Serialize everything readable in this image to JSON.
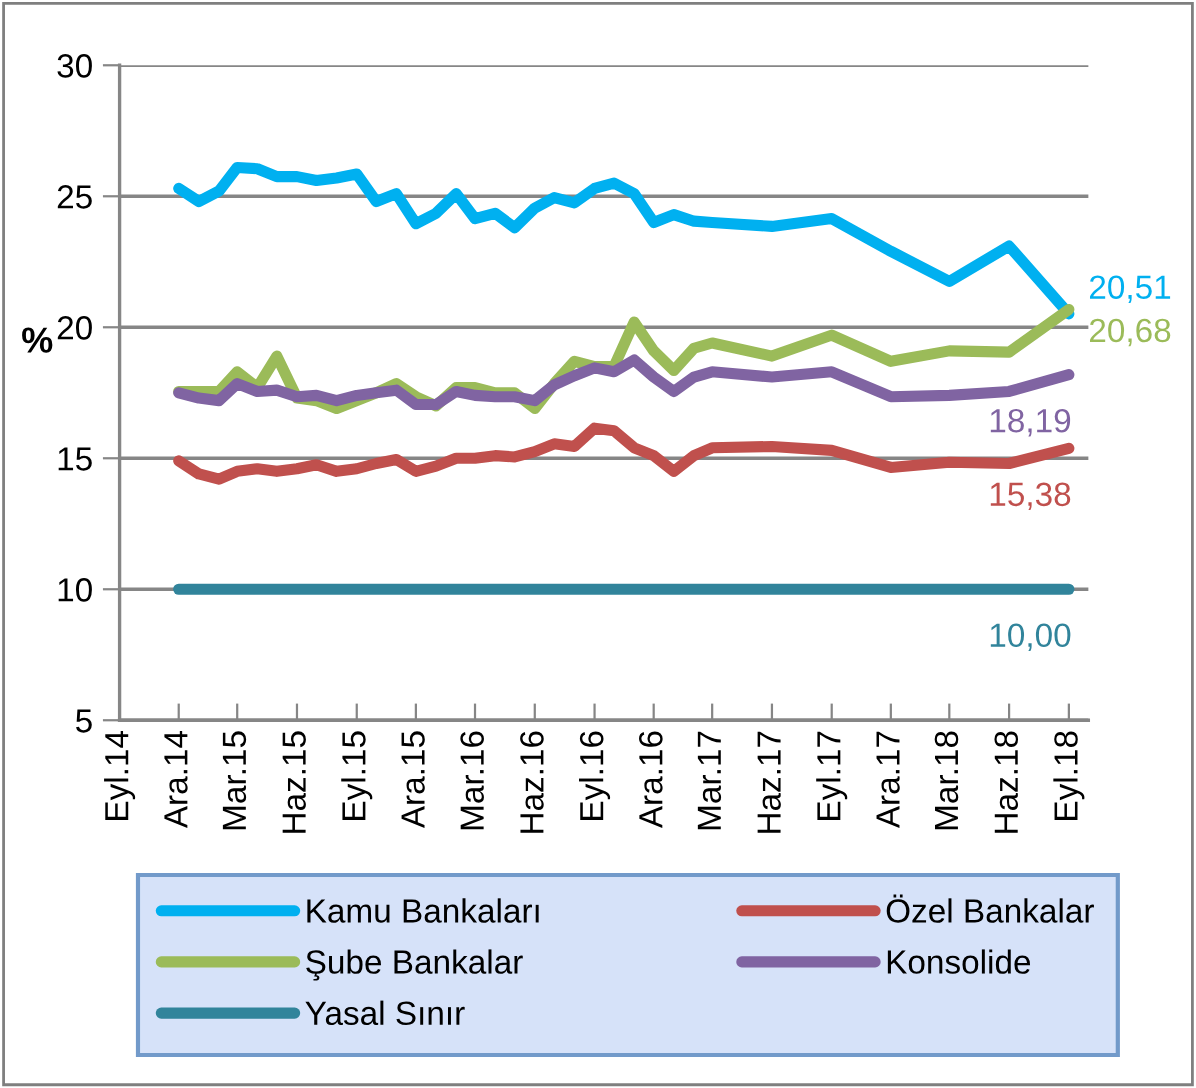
{
  "chart_data": {
    "type": "line",
    "ylabel": "%",
    "x": [
      "2014-12",
      "2015-01",
      "2015-02",
      "2015-03",
      "2015-04",
      "2015-05",
      "2015-06",
      "2015-07",
      "2015-08",
      "2015-09",
      "2015-10",
      "2015-11",
      "2015-12",
      "2016-01",
      "2016-02",
      "2016-03",
      "2016-04",
      "2016-05",
      "2016-06",
      "2016-07",
      "2016-08",
      "2016-09",
      "2016-10",
      "2016-11",
      "2016-12",
      "2017-01",
      "2017-02",
      "2017-03",
      "2017-06",
      "2017-09",
      "2017-12",
      "2018-03",
      "2018-06",
      "2018-09"
    ],
    "series": [
      {
        "name": "Kamu Bankaları",
        "color": "#00b0f0",
        "values": [
          25.3,
          24.8,
          25.2,
          26.1,
          26.05,
          25.75,
          25.75,
          25.6,
          25.7,
          25.85,
          24.8,
          25.1,
          23.95,
          24.35,
          25.1,
          24.15,
          24.35,
          23.8,
          24.55,
          24.95,
          24.75,
          25.3,
          25.5,
          25.1,
          24.0,
          24.3,
          24.05,
          24.0,
          23.85,
          24.15,
          22.9,
          21.75,
          23.1,
          20.51
        ],
        "value_labels": [
          null,
          null,
          null,
          null,
          null,
          null,
          null,
          null,
          null,
          null,
          null,
          null,
          null,
          null,
          null,
          null,
          null,
          null,
          null,
          null,
          null,
          null,
          null,
          null,
          null,
          null,
          null,
          null,
          null,
          null,
          null,
          null,
          null,
          "20,51"
        ]
      },
      {
        "name": "Özel Bankalar",
        "color": "#c0504d",
        "values": [
          14.9,
          14.4,
          14.2,
          14.5,
          14.6,
          14.5,
          14.6,
          14.75,
          14.5,
          14.6,
          14.8,
          14.95,
          14.5,
          14.7,
          15.0,
          15.0,
          15.1,
          15.05,
          15.25,
          15.55,
          15.45,
          16.15,
          16.05,
          15.4,
          15.1,
          14.5,
          15.1,
          15.4,
          15.45,
          15.3,
          14.65,
          14.85,
          14.8,
          15.38
        ],
        "value_labels": [
          null,
          null,
          null,
          null,
          null,
          null,
          null,
          null,
          null,
          null,
          null,
          null,
          null,
          null,
          null,
          null,
          null,
          null,
          null,
          null,
          null,
          null,
          null,
          null,
          null,
          null,
          null,
          null,
          null,
          null,
          null,
          null,
          null,
          "15,38"
        ]
      },
      {
        "name": "Şube Bankalar",
        "color": "#9bbb59",
        "values": [
          17.55,
          17.55,
          17.55,
          18.3,
          17.7,
          18.9,
          17.3,
          17.2,
          16.9,
          17.2,
          17.5,
          17.85,
          17.35,
          17.0,
          17.7,
          17.7,
          17.5,
          17.5,
          16.9,
          17.85,
          18.7,
          18.5,
          18.5,
          20.2,
          19.1,
          18.35,
          19.2,
          19.4,
          18.9,
          19.7,
          18.7,
          19.1,
          19.05,
          20.68
        ],
        "value_labels": [
          null,
          null,
          null,
          null,
          null,
          null,
          null,
          null,
          null,
          null,
          null,
          null,
          null,
          null,
          null,
          null,
          null,
          null,
          null,
          null,
          null,
          null,
          null,
          null,
          null,
          null,
          null,
          null,
          null,
          null,
          null,
          null,
          null,
          "20,68"
        ]
      },
      {
        "name": "Konsolide",
        "color": "#8064a2",
        "values": [
          17.5,
          17.3,
          17.2,
          17.85,
          17.55,
          17.6,
          17.35,
          17.4,
          17.2,
          17.4,
          17.5,
          17.6,
          17.05,
          17.05,
          17.55,
          17.4,
          17.35,
          17.35,
          17.2,
          17.8,
          18.15,
          18.45,
          18.3,
          18.75,
          18.1,
          17.55,
          18.1,
          18.3,
          18.1,
          18.3,
          17.35,
          17.4,
          17.55,
          18.19
        ],
        "value_labels": [
          null,
          null,
          null,
          null,
          null,
          null,
          null,
          null,
          null,
          null,
          null,
          null,
          null,
          null,
          null,
          null,
          null,
          null,
          null,
          null,
          null,
          null,
          null,
          null,
          null,
          null,
          null,
          null,
          null,
          null,
          null,
          null,
          null,
          "18,19"
        ]
      },
      {
        "name": "Yasal Sınır",
        "color": "#31849b",
        "values": [
          10,
          10,
          10,
          10,
          10,
          10,
          10,
          10,
          10,
          10,
          10,
          10,
          10,
          10,
          10,
          10,
          10,
          10,
          10,
          10,
          10,
          10,
          10,
          10,
          10,
          10,
          10,
          10,
          10,
          10,
          10,
          10,
          10,
          10.0
        ],
        "value_labels": [
          null,
          null,
          null,
          null,
          null,
          null,
          null,
          null,
          null,
          null,
          null,
          null,
          null,
          null,
          null,
          null,
          null,
          null,
          null,
          null,
          null,
          null,
          null,
          null,
          null,
          null,
          null,
          null,
          null,
          null,
          null,
          null,
          null,
          "10,00"
        ]
      }
    ],
    "xlim": [
      "2014-09",
      "2018-10"
    ],
    "xticks": [
      {
        "value": "2014-09",
        "label": "Eyl.14"
      },
      {
        "value": "2014-12",
        "label": "Ara.14"
      },
      {
        "value": "2015-03",
        "label": "Mar.15"
      },
      {
        "value": "2015-06",
        "label": "Haz.15"
      },
      {
        "value": "2015-09",
        "label": "Eyl.15"
      },
      {
        "value": "2015-12",
        "label": "Ara.15"
      },
      {
        "value": "2016-03",
        "label": "Mar.16"
      },
      {
        "value": "2016-06",
        "label": "Haz.16"
      },
      {
        "value": "2016-09",
        "label": "Eyl.16"
      },
      {
        "value": "2016-12",
        "label": "Ara.16"
      },
      {
        "value": "2017-03",
        "label": "Mar.17"
      },
      {
        "value": "2017-06",
        "label": "Haz.17"
      },
      {
        "value": "2017-09",
        "label": "Eyl.17"
      },
      {
        "value": "2017-12",
        "label": "Ara.17"
      },
      {
        "value": "2018-03",
        "label": "Mar.18"
      },
      {
        "value": "2018-06",
        "label": "Haz.18"
      },
      {
        "value": "2018-09",
        "label": "Eyl.18"
      }
    ],
    "ylim": [
      5,
      30
    ],
    "yticks": [
      5,
      10,
      15,
      20,
      25,
      30
    ],
    "grid": "y",
    "legend": "bottom",
    "marker": "none",
    "line_style": "solid"
  }
}
